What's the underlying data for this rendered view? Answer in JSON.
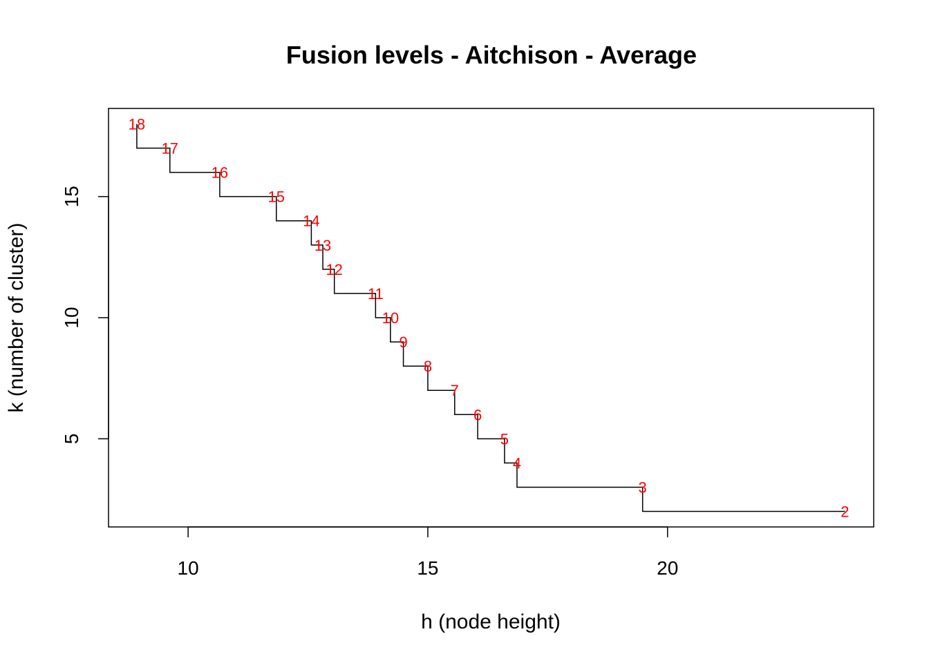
{
  "chart_data": {
    "type": "line",
    "title": "Fusion levels - Aitchison - Average",
    "xlabel": "h (node height)",
    "ylabel": "k (number of cluster)",
    "xlim": [
      8.34,
      24.3
    ],
    "ylim": [
      1.36,
      18.64
    ],
    "x_ticks": [
      10,
      15,
      20
    ],
    "y_ticks": [
      5,
      10,
      15
    ],
    "x_tick_labels": [
      "10",
      "15",
      "20"
    ],
    "y_tick_labels": [
      "5",
      "10",
      "15"
    ],
    "line_color": "#000000",
    "label_color": "#ff0000",
    "points": [
      {
        "h": 8.93,
        "k": 18,
        "label": "18"
      },
      {
        "h": 9.62,
        "k": 17,
        "label": "17"
      },
      {
        "h": 10.66,
        "k": 16,
        "label": "16"
      },
      {
        "h": 11.84,
        "k": 15,
        "label": "15"
      },
      {
        "h": 12.57,
        "k": 14,
        "label": "14"
      },
      {
        "h": 12.81,
        "k": 13,
        "label": "13"
      },
      {
        "h": 13.05,
        "k": 12,
        "label": "12"
      },
      {
        "h": 13.91,
        "k": 11,
        "label": "11"
      },
      {
        "h": 14.22,
        "k": 10,
        "label": "10"
      },
      {
        "h": 14.49,
        "k": 9,
        "label": "9"
      },
      {
        "h": 15.0,
        "k": 8,
        "label": "8"
      },
      {
        "h": 15.56,
        "k": 7,
        "label": "7"
      },
      {
        "h": 16.04,
        "k": 6,
        "label": "6"
      },
      {
        "h": 16.6,
        "k": 5,
        "label": "5"
      },
      {
        "h": 16.86,
        "k": 4,
        "label": "4"
      },
      {
        "h": 19.48,
        "k": 3,
        "label": "3"
      },
      {
        "h": 23.7,
        "k": 2,
        "label": "2"
      }
    ]
  }
}
